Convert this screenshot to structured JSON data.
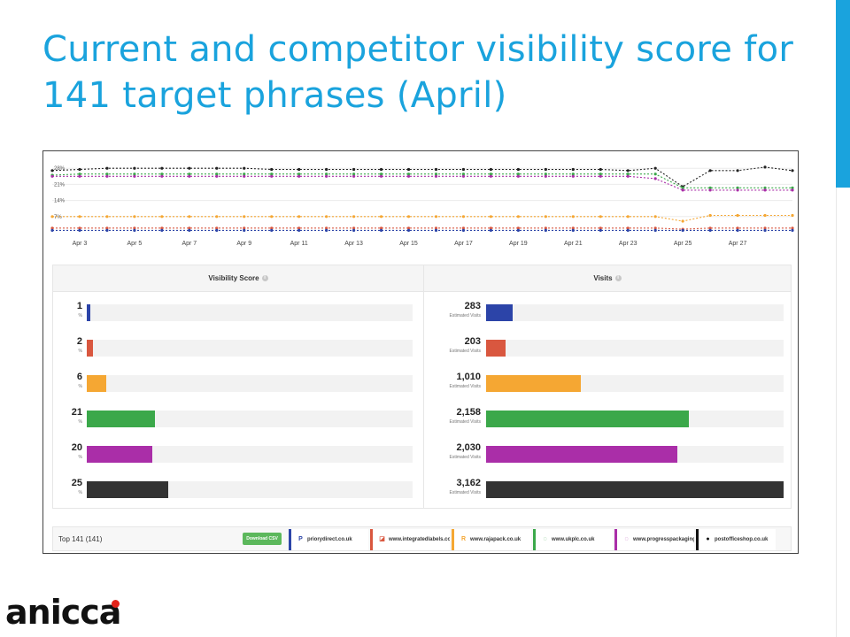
{
  "slide": {
    "title": "Current and competitor visibility score for 141 target phrases (April)",
    "accent_color": "#1aa3dd",
    "logo_text": "anicca",
    "logo_dot_color": "#e2231a"
  },
  "chart_data": {
    "type": "line",
    "y_tick_labels": [
      "28%",
      "21%",
      "14%",
      "7%"
    ],
    "ylim": [
      0,
      30
    ],
    "x": [
      "Apr 2",
      "Apr 3",
      "Apr 4",
      "Apr 5",
      "Apr 6",
      "Apr 7",
      "Apr 8",
      "Apr 9",
      "Apr 10",
      "Apr 11",
      "Apr 12",
      "Apr 13",
      "Apr 14",
      "Apr 15",
      "Apr 16",
      "Apr 17",
      "Apr 18",
      "Apr 19",
      "Apr 20",
      "Apr 21",
      "Apr 22",
      "Apr 23",
      "Apr 24",
      "Apr 25",
      "Apr 26",
      "Apr 27",
      "Apr 28",
      "Apr 29"
    ],
    "x_tick_labels": [
      "Apr 3",
      "Apr 5",
      "Apr 7",
      "Apr 9",
      "Apr 11",
      "Apr 13",
      "Apr 15",
      "Apr 17",
      "Apr 19",
      "Apr 21",
      "Apr 23",
      "Apr 25",
      "Apr 27"
    ],
    "grid": true,
    "series": [
      {
        "color": "#222222",
        "values": [
          27,
          27.5,
          28,
          28,
          28,
          28,
          28,
          28,
          27.5,
          27.5,
          27.5,
          27.5,
          27.5,
          27.5,
          27.5,
          27.5,
          27.5,
          27.5,
          27.5,
          27.5,
          27.5,
          27,
          28,
          20,
          27,
          27,
          28.5,
          27
        ]
      },
      {
        "color": "#3ba84a",
        "values": [
          25,
          25.5,
          25.5,
          25.5,
          25.5,
          25.5,
          25.5,
          25.5,
          25.5,
          25.5,
          25.5,
          25.5,
          25.5,
          25.5,
          25.5,
          25.5,
          25.5,
          25.5,
          25.5,
          25.5,
          25.5,
          25.5,
          25.5,
          19.5,
          19.5,
          19.5,
          19.5,
          19.5
        ]
      },
      {
        "color": "#aa2ea8",
        "values": [
          24.5,
          24.5,
          24.5,
          24.5,
          24.5,
          24.5,
          24.5,
          24.5,
          24.5,
          24.5,
          24.5,
          24.5,
          24.5,
          24.5,
          24.5,
          24.5,
          24.5,
          24.5,
          24.5,
          24.5,
          24.5,
          24.5,
          23.5,
          18.5,
          18.5,
          18.5,
          18.5,
          18.5
        ]
      },
      {
        "color": "#f5a733",
        "values": [
          7,
          7,
          7,
          7,
          7,
          7,
          7,
          7,
          7,
          7,
          7,
          7,
          7,
          7,
          7,
          7,
          7,
          7,
          7,
          7,
          7,
          7,
          7,
          5,
          7.5,
          7.5,
          7.5,
          7.5
        ]
      },
      {
        "color": "#d9573f",
        "values": [
          2,
          2,
          2,
          2,
          2,
          2,
          2,
          2,
          2,
          2,
          2,
          2,
          2,
          2,
          2,
          2,
          2,
          2,
          2,
          2,
          2,
          2,
          2,
          1.5,
          2,
          2,
          2,
          2
        ]
      },
      {
        "color": "#2c44a8",
        "values": [
          1,
          1,
          1,
          1,
          1,
          1,
          1,
          1,
          1,
          1,
          1,
          1,
          1,
          1,
          1,
          1,
          1,
          1,
          1,
          1,
          1,
          1,
          1,
          1,
          1,
          1,
          1,
          1
        ]
      }
    ]
  },
  "visibility_panel": {
    "header": "Visibility Score",
    "max": 100,
    "rows": [
      {
        "value": "1",
        "num": 1,
        "unit": "%",
        "color": "#2c44a8"
      },
      {
        "value": "2",
        "num": 2,
        "unit": "%",
        "color": "#d9573f"
      },
      {
        "value": "6",
        "num": 6,
        "unit": "%",
        "color": "#f5a733"
      },
      {
        "value": "21",
        "num": 21,
        "unit": "%",
        "color": "#3ba84a"
      },
      {
        "value": "20",
        "num": 20,
        "unit": "%",
        "color": "#aa2ea8"
      },
      {
        "value": "25",
        "num": 25,
        "unit": "%",
        "color": "#333333"
      }
    ]
  },
  "visits_panel": {
    "header": "Visits",
    "max": 3162,
    "rows": [
      {
        "value": "283",
        "num": 283,
        "unit": "Estimated Visits",
        "color": "#2c44a8"
      },
      {
        "value": "203",
        "num": 203,
        "unit": "Estimated Visits",
        "color": "#d9573f"
      },
      {
        "value": "1,010",
        "num": 1010,
        "unit": "Estimated Visits",
        "color": "#f5a733"
      },
      {
        "value": "2,158",
        "num": 2158,
        "unit": "Estimated Visits",
        "color": "#3ba84a"
      },
      {
        "value": "2,030",
        "num": 2030,
        "unit": "Estimated Visits",
        "color": "#aa2ea8"
      },
      {
        "value": "3,162",
        "num": 3162,
        "unit": "Estimated Visits",
        "color": "#333333"
      }
    ]
  },
  "footer": {
    "top_label": "Top 141 (141)",
    "download_label": "Download CSV",
    "sites": [
      {
        "name": "priorydirect.co.uk",
        "color": "#2c44a8",
        "icon": "P"
      },
      {
        "name": "www.integratedlabels.co.uk",
        "color": "#d9573f",
        "icon": "◪"
      },
      {
        "name": "www.rajapack.co.uk",
        "color": "#f5a733",
        "icon": "R"
      },
      {
        "name": "www.ukplc.co.uk",
        "color": "#3ba84a",
        "icon": "◌"
      },
      {
        "name": "www.progresspackaging.co.uk",
        "color": "#aa2ea8",
        "icon": "◌"
      },
      {
        "name": "postofficeshop.co.uk",
        "color": "#111111",
        "icon": "●"
      }
    ]
  }
}
